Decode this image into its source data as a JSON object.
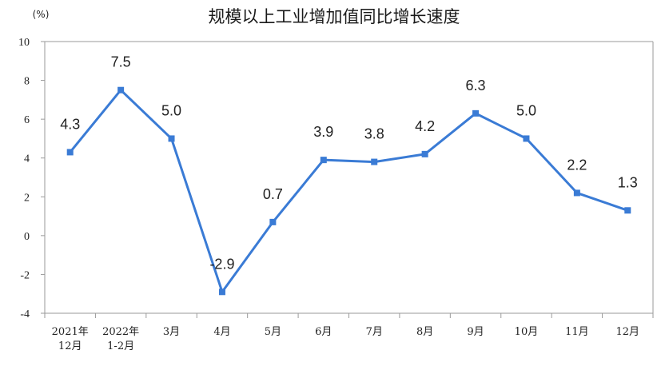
{
  "chart_data": {
    "type": "line",
    "title": "规模以上工业增加值同比增长速度",
    "unit_label": "(%)",
    "categories": [
      [
        "2021年",
        "12月"
      ],
      [
        "2022年",
        "1-2月"
      ],
      [
        "3月"
      ],
      [
        "4月"
      ],
      [
        "5月"
      ],
      [
        "6月"
      ],
      [
        "7月"
      ],
      [
        "8月"
      ],
      [
        "9月"
      ],
      [
        "10月"
      ],
      [
        "11月"
      ],
      [
        "12月"
      ]
    ],
    "values": [
      4.3,
      7.5,
      5.0,
      -2.9,
      0.7,
      3.9,
      3.8,
      4.2,
      6.3,
      5.0,
      2.2,
      1.3
    ],
    "data_labels": [
      "4.3",
      "7.5",
      "5.0",
      "-2.9",
      "0.7",
      "3.9",
      "3.8",
      "4.2",
      "6.3",
      "5.0",
      "2.2",
      "1.3"
    ],
    "yticks": [
      "10",
      "8",
      "6",
      "4",
      "2",
      "0",
      "-2",
      "-4"
    ],
    "ylim": [
      -4,
      10
    ],
    "grid": false,
    "colors": {
      "line": "#3a7bd5",
      "marker": "#3a7bd5",
      "axis": "#9a9a9a"
    }
  }
}
